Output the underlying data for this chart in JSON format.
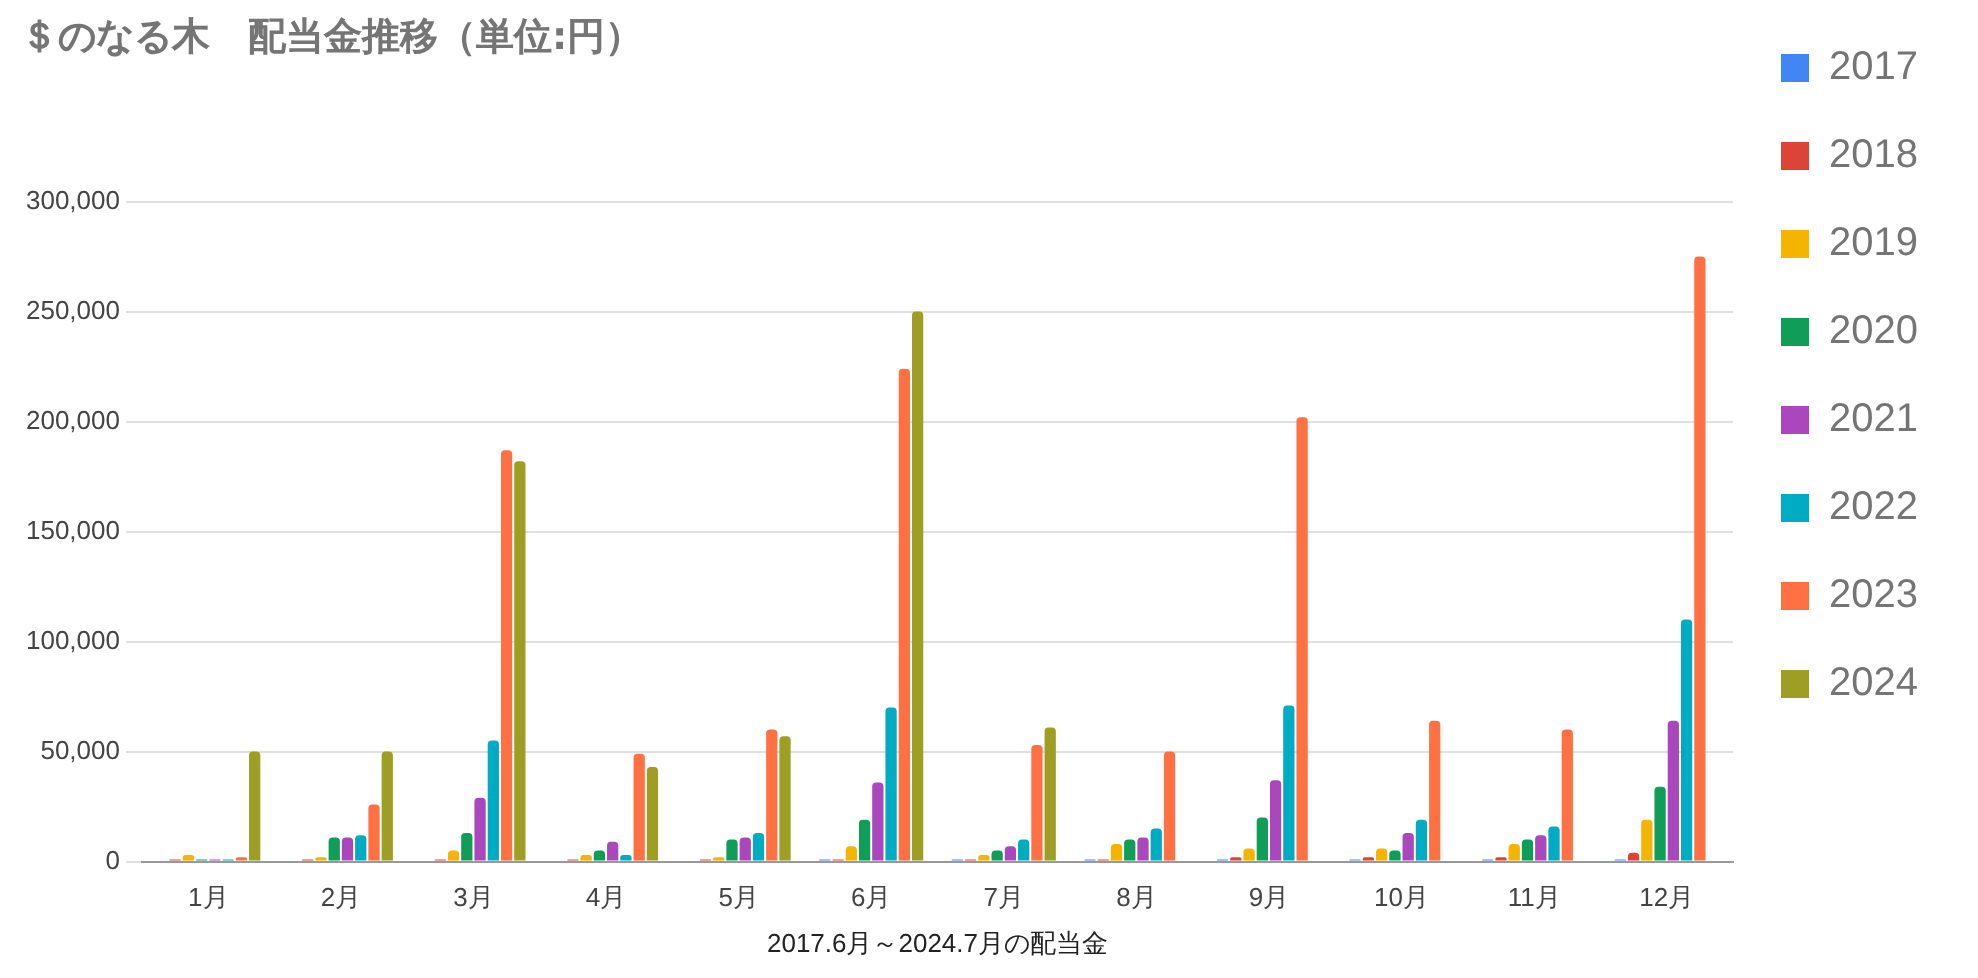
{
  "chart_data": {
    "type": "bar",
    "title": "＄のなる木　配当金推移（単位:円）",
    "xlabel": "2017.6月～2024.7月の配当金",
    "categories": [
      "1月",
      "2月",
      "3月",
      "4月",
      "5月",
      "6月",
      "7月",
      "8月",
      "9月",
      "10月",
      "11月",
      "12月"
    ],
    "series": [
      {
        "name": "2017",
        "color": "#4285f4",
        "values": [
          null,
          null,
          null,
          null,
          null,
          1000,
          1000,
          1000,
          1000,
          1000,
          1000,
          1000
        ]
      },
      {
        "name": "2018",
        "color": "#db4437",
        "values": [
          1000,
          1000,
          1000,
          1000,
          1000,
          1000,
          1000,
          1000,
          2000,
          2000,
          2000,
          4000
        ]
      },
      {
        "name": "2019",
        "color": "#f4b400",
        "values": [
          3000,
          2000,
          5000,
          3000,
          2000,
          7000,
          3000,
          8000,
          6000,
          6000,
          8000,
          19000
        ]
      },
      {
        "name": "2020",
        "color": "#0f9d58",
        "values": [
          1000,
          11000,
          13000,
          5000,
          10000,
          19000,
          5000,
          10000,
          20000,
          5000,
          10000,
          34000
        ]
      },
      {
        "name": "2021",
        "color": "#ab47bc",
        "values": [
          1000,
          11000,
          29000,
          9000,
          11000,
          36000,
          7000,
          11000,
          37000,
          13000,
          12000,
          64000
        ]
      },
      {
        "name": "2022",
        "color": "#00acc1",
        "values": [
          1000,
          12000,
          55000,
          3000,
          13000,
          70000,
          10000,
          15000,
          71000,
          19000,
          16000,
          110000
        ]
      },
      {
        "name": "2023",
        "color": "#ff7043",
        "values": [
          2000,
          26000,
          187000,
          49000,
          60000,
          224000,
          53000,
          50000,
          202000,
          64000,
          60000,
          275000
        ]
      },
      {
        "name": "2024",
        "color": "#9e9d24",
        "values": [
          50000,
          50000,
          182000,
          43000,
          57000,
          250000,
          61000,
          null,
          null,
          null,
          null,
          null
        ]
      }
    ],
    "ylim": [
      0,
      300000
    ],
    "yticks": [
      0,
      {
        "value": 50000,
        "label": "50,000"
      },
      {
        "value": 100000,
        "label": "100,000"
      },
      {
        "value": 150000,
        "label": "150,000"
      },
      {
        "value": 200000,
        "label": "200,000"
      },
      {
        "value": 250000,
        "label": "250,000"
      },
      {
        "value": 300000,
        "label": "300,000"
      }
    ],
    "grid": "y",
    "legend": "right"
  }
}
